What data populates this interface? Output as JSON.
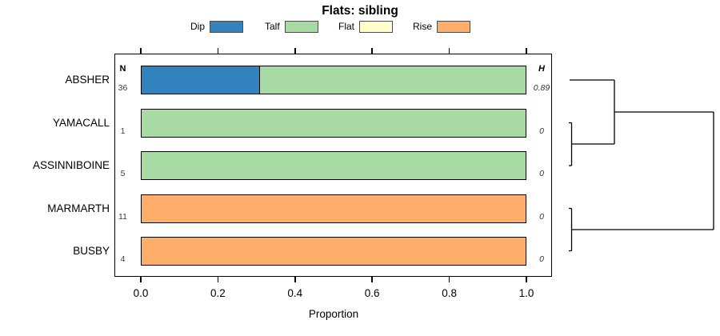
{
  "title": "Flats: sibling",
  "legend": [
    {
      "label": "Dip",
      "color": "#3182bd"
    },
    {
      "label": "Talf",
      "color": "#a8dba3"
    },
    {
      "label": "Flat",
      "color": "#ffffcc"
    },
    {
      "label": "Rise",
      "color": "#fdae6b"
    }
  ],
  "chart_data": {
    "type": "bar",
    "orientation": "horizontal-stacked",
    "title": "Flats: sibling",
    "xlabel": "Proportion",
    "xlim": [
      0.0,
      1.0
    ],
    "xtick_labels": [
      "0.0",
      "0.2",
      "0.4",
      "0.6",
      "0.8",
      "1.0"
    ],
    "xtick_values": [
      0.0,
      0.2,
      0.4,
      0.6,
      0.8,
      1.0
    ],
    "categories": [
      "ABSHER",
      "YAMACALL",
      "ASSINNIBOINE",
      "MARMARTH",
      "BUSBY"
    ],
    "n_column_header": "N",
    "h_column_header": "H",
    "n_values": [
      "36",
      "1",
      "5",
      "11",
      "4"
    ],
    "h_values": [
      "0.89",
      "0",
      "0",
      "0",
      "0"
    ],
    "series": [
      {
        "name": "Dip",
        "color": "#3182bd",
        "values": [
          0.306,
          0,
          0,
          0,
          0
        ]
      },
      {
        "name": "Talf",
        "color": "#a8dba3",
        "values": [
          0.694,
          1,
          1,
          0,
          0
        ]
      },
      {
        "name": "Flat",
        "color": "#ffffcc",
        "values": [
          0,
          0,
          0,
          0,
          0
        ]
      },
      {
        "name": "Rise",
        "color": "#fdae6b",
        "values": [
          0,
          0,
          0,
          1,
          1
        ]
      }
    ],
    "dendrogram": {
      "structure": "((ABSHER,(YAMACALL,ASSINNIBOINE)),(MARMARTH,BUSBY))",
      "line_color": "#000000",
      "segments": [
        [
          712,
          100,
          768,
          100
        ],
        [
          768,
          100,
          768,
          180
        ],
        [
          768,
          140,
          892,
          140
        ],
        [
          711,
          153.5,
          714.5,
          153.5
        ],
        [
          714.5,
          153.5,
          714.5,
          207
        ],
        [
          711,
          207,
          714.5,
          207
        ],
        [
          714.5,
          180,
          768,
          180
        ],
        [
          711,
          260.5,
          714.5,
          260.5
        ],
        [
          714.5,
          260.5,
          714.5,
          313.5
        ],
        [
          711,
          313.5,
          714.5,
          313.5
        ],
        [
          714.5,
          287,
          892,
          287
        ],
        [
          892,
          140,
          892,
          287
        ]
      ]
    }
  }
}
